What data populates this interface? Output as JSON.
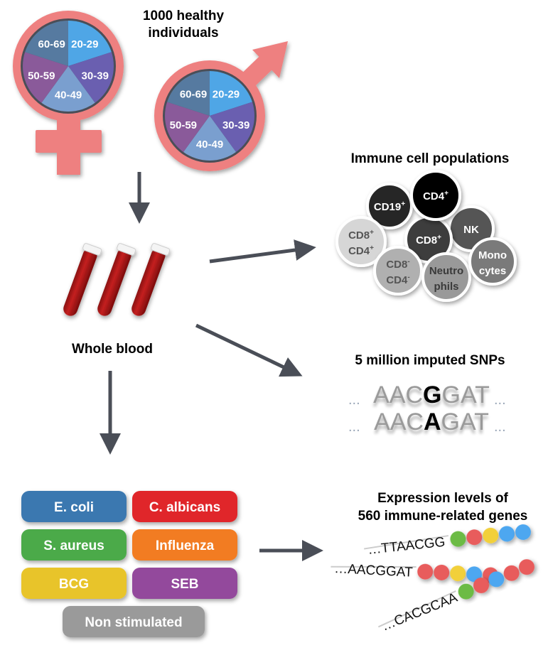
{
  "title": "1000 healthy individuals",
  "title_lines": [
    "1000 healthy",
    "individuals"
  ],
  "age_groups": [
    "20-29",
    "30-39",
    "40-49",
    "50-59",
    "60-69"
  ],
  "colors": {
    "symbol": "#ee8080",
    "age": [
      "#4fa6e6",
      "#6a5fb0",
      "#7a9fcf",
      "#8a5a9a",
      "#567aa0"
    ],
    "arrow": "#4a4e57",
    "blood": "#b01c1c"
  },
  "whole_blood": "Whole blood",
  "immune": {
    "title": "Immune cell populations",
    "cells": [
      {
        "label": [
          "CD19",
          "+"
        ],
        "fill": "#262626",
        "text": "#ffffff"
      },
      {
        "label": [
          "NK"
        ],
        "fill": "#555555",
        "text": "#ffffff"
      },
      {
        "label": [
          "CD8",
          "+"
        ],
        "fill": "#3c3c3c",
        "text": "#ffffff"
      },
      {
        "label": [
          "CD4",
          "+"
        ],
        "fill": "#050505",
        "text": "#ffffff"
      },
      {
        "label": [
          "CD8",
          "+",
          "CD4",
          "+"
        ],
        "fill": "#d6d6d6",
        "text": "#555555"
      },
      {
        "label": [
          "CD8",
          "-",
          "CD4",
          "-"
        ],
        "fill": "#b0b0b0",
        "text": "#555555"
      },
      {
        "label": [
          "Neutro",
          "phils"
        ],
        "fill": "#999999",
        "text": "#3a3a3a"
      },
      {
        "label": [
          "Mono",
          "cytes"
        ],
        "fill": "#7a7a7a",
        "text": "#ffffff"
      }
    ]
  },
  "snps": {
    "title": "5 million imputed SNPs",
    "seq1": {
      "pre": "AACG",
      "alt": "G",
      "post": "AT",
      "highlight": "G"
    },
    "rows": [
      {
        "before": "AAC",
        "allele": "G",
        "after": "GAT"
      },
      {
        "before": "AAC",
        "allele": "A",
        "after": "GAT"
      }
    ],
    "ellipsis": "..."
  },
  "stimuli": [
    {
      "label": "E. coli",
      "color": "#3a78b0"
    },
    {
      "label": "C. albicans",
      "color": "#e0282c"
    },
    {
      "label": "S. aureus",
      "color": "#4caa48"
    },
    {
      "label": "Influenza",
      "color": "#f27c22"
    },
    {
      "label": "BCG",
      "color": "#e8c42a"
    },
    {
      "label": "SEB",
      "color": "#93489c"
    },
    {
      "label": "Non stimulated",
      "color": "#9a9a9a"
    }
  ],
  "expression": {
    "title_lines": [
      "Expression levels of",
      "560 immune-related genes"
    ],
    "genes": [
      {
        "seq": "…TTAACGG",
        "beads": [
          "#6cbb45",
          "#e85c5c",
          "#f2d03a",
          "#4ea7f0",
          "#4ea7f0"
        ]
      },
      {
        "seq": "…AACGGAT",
        "beads": [
          "#e85c5c",
          "#e85c5c",
          "#f2d03a",
          "#4ea7f0",
          "#e85c5c"
        ]
      },
      {
        "seq": "…CACGCAA",
        "beads": [
          "#6cbb45",
          "#e85c5c",
          "#4ea7f0",
          "#e85c5c",
          "#e85c5c"
        ]
      }
    ]
  }
}
